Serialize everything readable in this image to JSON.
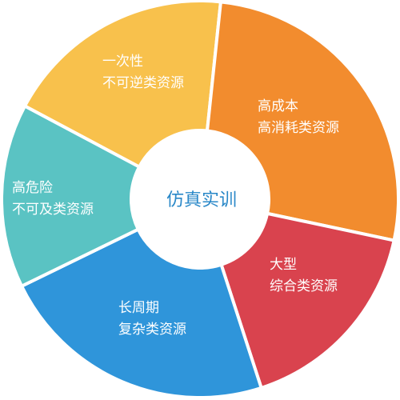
{
  "center": {
    "label": "仿真实训",
    "color": "#2a88c8",
    "bg": "#ffffff"
  },
  "segments": [
    {
      "lines": [
        "一次性",
        "不可逆类资源"
      ],
      "color": "#f8c14c"
    },
    {
      "lines": [
        "高成本",
        "高消耗类资源"
      ],
      "color": "#f28c2e"
    },
    {
      "lines": [
        "大型",
        "综合类资源"
      ],
      "color": "#d9434e"
    },
    {
      "lines": [
        "长周期",
        "复杂类资源"
      ],
      "color": "#2f95da"
    },
    {
      "lines": [
        "高危险",
        "不可及类资源"
      ],
      "color": "#5ac3c3"
    }
  ]
}
